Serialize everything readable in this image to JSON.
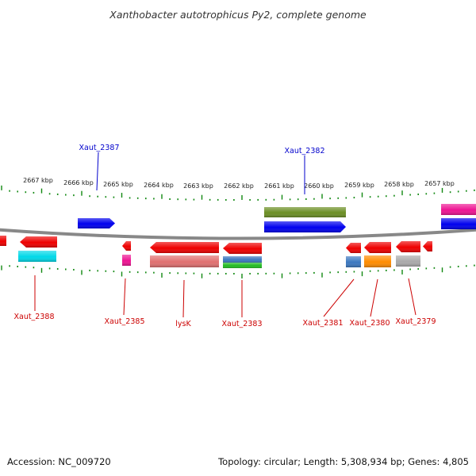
{
  "title": "Xanthobacter autotrophicus Py2, complete genome",
  "footer": {
    "accession": "Accession: NC_009720",
    "summary": "Topology: circular; Length: 5,308,934 bp; Genes: 4,805"
  },
  "ticks": [
    "2667 kbp",
    "2666 kbp",
    "2665 kbp",
    "2664 kbp",
    "2663 kbp",
    "2662 kbp",
    "2661 kbp",
    "2660 kbp",
    "2659 kbp",
    "2658 kbp",
    "2657 kbp"
  ],
  "labels": [
    {
      "text": "Xaut_2387",
      "color": "#0000cc"
    },
    {
      "text": "Xaut_2382",
      "color": "#0000cc"
    },
    {
      "text": "Xaut_2388",
      "color": "#cc0000"
    },
    {
      "text": "Xaut_2385",
      "color": "#cc0000"
    },
    {
      "text": "lysK",
      "color": "#cc0000"
    },
    {
      "text": "Xaut_2383",
      "color": "#cc0000"
    },
    {
      "text": "Xaut_2381",
      "color": "#cc0000"
    },
    {
      "text": "Xaut_2380",
      "color": "#cc0000"
    },
    {
      "text": "Xaut_2379",
      "color": "#cc0000"
    }
  ],
  "colors": {
    "forward": "#0000ee",
    "reverse": "#ee0000",
    "olive": "#6b8e23",
    "magenta": "#ee1493",
    "cyan": "#00d8e8",
    "salmon": "#e07070",
    "steelblue": "#3c78c0",
    "green": "#22bb22",
    "orange": "#ff8c00",
    "gray": "#aaaaaa",
    "ticks": "#118811",
    "backbone": "#888888"
  }
}
